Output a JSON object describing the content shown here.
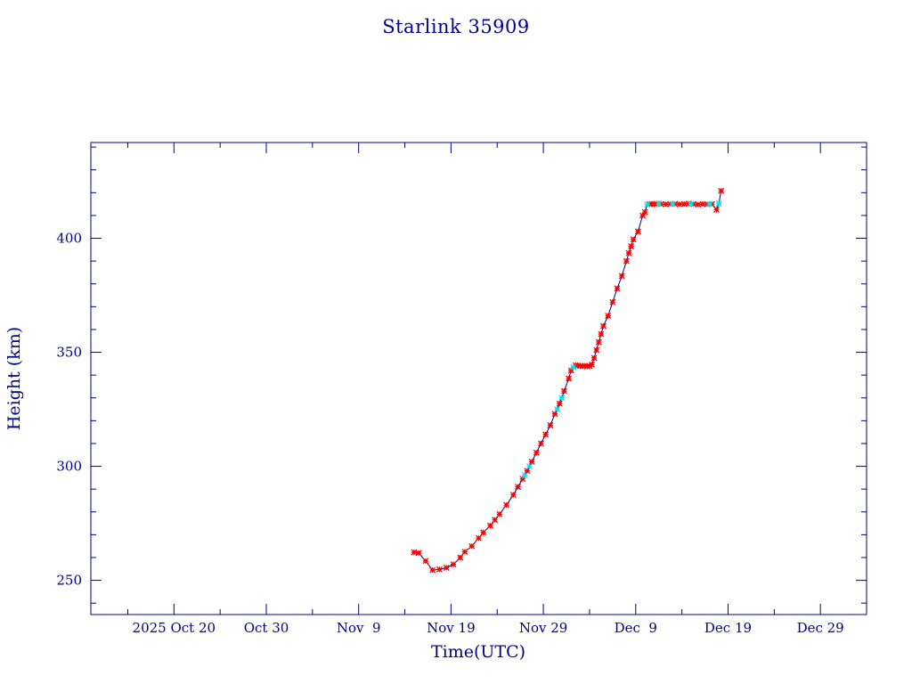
{
  "chart_data": {
    "type": "scatter",
    "title": "Starlink 35909",
    "xlabel": "Time(UTC)",
    "ylabel": "Height (km)",
    "x_type": "date",
    "xlim": [
      "2025-10-11",
      "2026-01-03"
    ],
    "ylim": [
      235,
      442
    ],
    "x_ticks": [
      {
        "date": "2025-10-20",
        "label": "2025 Oct 20"
      },
      {
        "date": "2025-10-30",
        "label": "Oct 30"
      },
      {
        "date": "2025-11-09",
        "label": "Nov  9"
      },
      {
        "date": "2025-11-19",
        "label": "Nov 19"
      },
      {
        "date": "2025-11-29",
        "label": "Nov 29"
      },
      {
        "date": "2025-12-09",
        "label": "Dec  9"
      },
      {
        "date": "2025-12-19",
        "label": "Dec 19"
      },
      {
        "date": "2025-12-29",
        "label": "Dec 29"
      }
    ],
    "y_ticks": [
      250,
      300,
      350,
      400
    ],
    "colors": {
      "axes": "#00008b",
      "line": "#00008b",
      "marker_primary": "#ff0000",
      "marker_secondary": "#00e5ee"
    },
    "series": [
      {
        "marker": "star",
        "color": "#ff0000",
        "points": [
          [
            "2025-11-15T00:00",
            262.3
          ],
          [
            "2025-11-15T12:00",
            262.0
          ],
          [
            "2025-11-16T06:00",
            258.5
          ],
          [
            "2025-11-17T00:00",
            254.5
          ],
          [
            "2025-11-17T18:00",
            254.8
          ],
          [
            "2025-11-18T12:00",
            255.5
          ],
          [
            "2025-11-19T06:00",
            257.0
          ],
          [
            "2025-11-20T00:00",
            260.0
          ],
          [
            "2025-11-20T12:00",
            262.5
          ],
          [
            "2025-11-21T06:00",
            265.0
          ],
          [
            "2025-11-22T00:00",
            268.5
          ],
          [
            "2025-11-22T12:00",
            271.0
          ],
          [
            "2025-11-23T06:00",
            274.0
          ],
          [
            "2025-11-23T18:00",
            276.5
          ],
          [
            "2025-11-24T06:00",
            279.0
          ],
          [
            "2025-11-25T00:00",
            283.0
          ],
          [
            "2025-11-25T18:00",
            287.5
          ],
          [
            "2025-11-26T06:00",
            291.0
          ],
          [
            "2025-11-26T18:00",
            294.5
          ],
          [
            "2025-11-27T06:00",
            298.0
          ],
          [
            "2025-11-27T18:00",
            302.0
          ],
          [
            "2025-11-28T06:00",
            306.0
          ],
          [
            "2025-11-28T18:00",
            310.0
          ],
          [
            "2025-11-29T06:00",
            314.0
          ],
          [
            "2025-11-29T18:00",
            318.0
          ],
          [
            "2025-11-30T06:00",
            323.0
          ],
          [
            "2025-11-30T18:00",
            327.5
          ],
          [
            "2025-12-01T06:00",
            333.0
          ],
          [
            "2025-12-01T18:00",
            338.5
          ],
          [
            "2025-12-02T00:00",
            342.0
          ],
          [
            "2025-12-02T12:00",
            344.3
          ],
          [
            "2025-12-02T18:00",
            344.2
          ],
          [
            "2025-12-03T00:00",
            344.0
          ],
          [
            "2025-12-03T06:00",
            343.9
          ],
          [
            "2025-12-03T12:00",
            344.1
          ],
          [
            "2025-12-03T18:00",
            343.8
          ],
          [
            "2025-12-04T00:00",
            344.0
          ],
          [
            "2025-12-04T06:00",
            344.6
          ],
          [
            "2025-12-04T12:00",
            347.5
          ],
          [
            "2025-12-04T18:00",
            351.0
          ],
          [
            "2025-12-05T00:00",
            354.5
          ],
          [
            "2025-12-05T06:00",
            358.0
          ],
          [
            "2025-12-05T12:00",
            361.5
          ],
          [
            "2025-12-06T00:00",
            366.0
          ],
          [
            "2025-12-06T12:00",
            372.0
          ],
          [
            "2025-12-07T00:00",
            378.0
          ],
          [
            "2025-12-07T12:00",
            383.5
          ],
          [
            "2025-12-08T00:00",
            390.0
          ],
          [
            "2025-12-08T06:00",
            393.5
          ],
          [
            "2025-12-08T12:00",
            396.5
          ],
          [
            "2025-12-08T18:00",
            399.5
          ],
          [
            "2025-12-09T06:00",
            403.0
          ],
          [
            "2025-12-09T18:00",
            410.0
          ],
          [
            "2025-12-10T00:00",
            411.5
          ],
          [
            "2025-12-10T12:00",
            415.0
          ],
          [
            "2025-12-10T18:00",
            415.1
          ],
          [
            "2025-12-11T00:00",
            414.9
          ],
          [
            "2025-12-11T06:00",
            415.0
          ],
          [
            "2025-12-11T12:00",
            415.2
          ],
          [
            "2025-12-11T18:00",
            415.0
          ],
          [
            "2025-12-12T06:00",
            414.9
          ],
          [
            "2025-12-12T18:00",
            415.0
          ],
          [
            "2025-12-13T06:00",
            415.1
          ],
          [
            "2025-12-13T18:00",
            414.9
          ],
          [
            "2025-12-14T06:00",
            415.0
          ],
          [
            "2025-12-14T18:00",
            415.2
          ],
          [
            "2025-12-15T06:00",
            415.0
          ],
          [
            "2025-12-15T18:00",
            414.8
          ],
          [
            "2025-12-16T06:00",
            415.0
          ],
          [
            "2025-12-16T18:00",
            414.9
          ],
          [
            "2025-12-17T06:00",
            415.0
          ],
          [
            "2025-12-17T18:00",
            412.5
          ],
          [
            "2025-12-18T06:00",
            420.8
          ]
        ]
      },
      {
        "marker": "star",
        "color": "#00e5ee",
        "points": [
          [
            "2025-11-27T00:00",
            296.0
          ],
          [
            "2025-11-27T12:00",
            300.0
          ],
          [
            "2025-11-30T12:00",
            325.0
          ],
          [
            "2025-12-01T00:00",
            330.0
          ],
          [
            "2025-12-02T06:00",
            343.5
          ],
          [
            "2025-12-10T06:00",
            414.8
          ],
          [
            "2025-12-11T12:00",
            415.0
          ],
          [
            "2025-12-13T00:00",
            415.0
          ],
          [
            "2025-12-15T00:00",
            415.0
          ],
          [
            "2025-12-17T00:00",
            415.0
          ],
          [
            "2025-12-18T00:00",
            415.2
          ]
        ]
      }
    ]
  }
}
